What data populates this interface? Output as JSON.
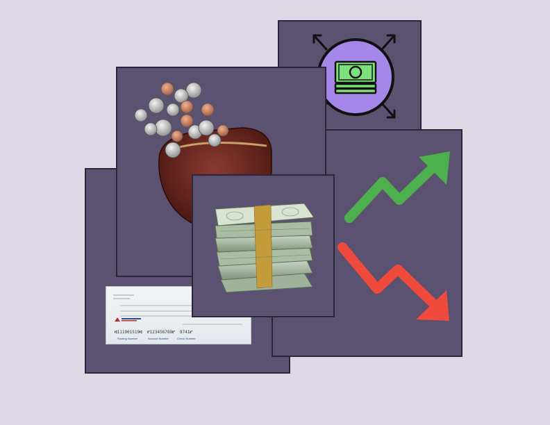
{
  "cheque": {
    "micr_routing": "⑆111901519⑆",
    "micr_account": "⑈123456789⑈",
    "micr_check": "9741⑈",
    "routing_label": "Routing Number",
    "account_label": "Account Number",
    "check_label": "Check Number"
  },
  "colors": {
    "background": "#dcd8e4",
    "card": "#5b5170",
    "card_border": "#2c2638",
    "icon_circle": "#a487e8",
    "icon_cash": "#7ee07a",
    "trend_up": "#4cb04c",
    "trend_down": "#f04a3c"
  },
  "icons": [
    "cash-distribution-icon",
    "trend-up-arrow-icon",
    "trend-down-arrow-icon",
    "coin-purse-icon",
    "money-stack-icon"
  ]
}
